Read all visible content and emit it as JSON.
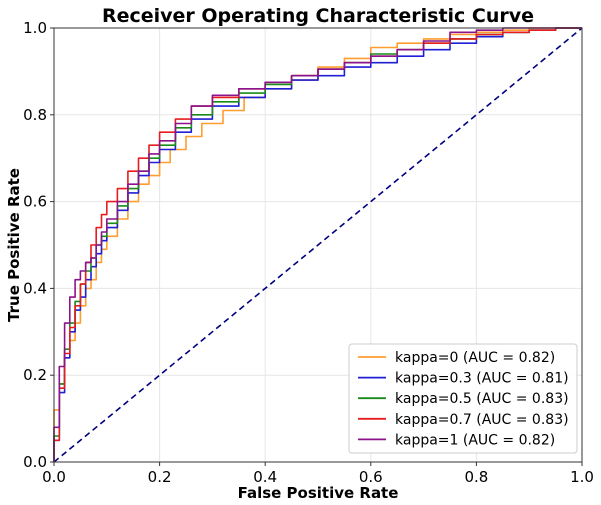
{
  "chart_data": {
    "type": "line",
    "title": "Receiver Operating Characteristic Curve",
    "xlabel": "False Positive Rate",
    "ylabel": "True Positive Rate",
    "xlim": [
      0.0,
      1.0
    ],
    "ylim": [
      0.0,
      1.0
    ],
    "x_ticks": [
      "0.0",
      "0.2",
      "0.4",
      "0.6",
      "0.8",
      "1.0"
    ],
    "y_ticks": [
      "0.0",
      "0.2",
      "0.4",
      "0.6",
      "0.8",
      "1.0"
    ],
    "grid": true,
    "legend_position": "lower-right",
    "diagonal": {
      "color": "#000080",
      "style": "dashed",
      "points": [
        [
          0,
          0
        ],
        [
          1,
          1
        ]
      ]
    },
    "series": [
      {
        "name": "kappa=0 (AUC = 0.82)",
        "color": "#ff9d2e",
        "points": [
          [
            0,
            0
          ],
          [
            0,
            0.12
          ],
          [
            0.01,
            0.12
          ],
          [
            0.01,
            0.18
          ],
          [
            0.02,
            0.24
          ],
          [
            0.03,
            0.28
          ],
          [
            0.04,
            0.32
          ],
          [
            0.05,
            0.36
          ],
          [
            0.06,
            0.4
          ],
          [
            0.07,
            0.42
          ],
          [
            0.08,
            0.46
          ],
          [
            0.09,
            0.49
          ],
          [
            0.1,
            0.52
          ],
          [
            0.12,
            0.56
          ],
          [
            0.14,
            0.6
          ],
          [
            0.16,
            0.64
          ],
          [
            0.18,
            0.66
          ],
          [
            0.2,
            0.69
          ],
          [
            0.22,
            0.72
          ],
          [
            0.25,
            0.75
          ],
          [
            0.28,
            0.78
          ],
          [
            0.32,
            0.81
          ],
          [
            0.36,
            0.84
          ],
          [
            0.4,
            0.86
          ],
          [
            0.45,
            0.88
          ],
          [
            0.5,
            0.91
          ],
          [
            0.55,
            0.93
          ],
          [
            0.6,
            0.955
          ],
          [
            0.65,
            0.965
          ],
          [
            0.7,
            0.975
          ],
          [
            0.75,
            0.985
          ],
          [
            0.8,
            0.99
          ],
          [
            0.85,
            0.995
          ],
          [
            0.9,
            1.0
          ],
          [
            1.0,
            1.0
          ]
        ]
      },
      {
        "name": "kappa=0.3 (AUC = 0.81)",
        "color": "#1f1fd6",
        "points": [
          [
            0,
            0
          ],
          [
            0,
            0.05
          ],
          [
            0.01,
            0.16
          ],
          [
            0.02,
            0.24
          ],
          [
            0.03,
            0.3
          ],
          [
            0.04,
            0.35
          ],
          [
            0.05,
            0.38
          ],
          [
            0.06,
            0.42
          ],
          [
            0.07,
            0.45
          ],
          [
            0.08,
            0.48
          ],
          [
            0.09,
            0.51
          ],
          [
            0.1,
            0.54
          ],
          [
            0.12,
            0.58
          ],
          [
            0.14,
            0.62
          ],
          [
            0.16,
            0.66
          ],
          [
            0.18,
            0.69
          ],
          [
            0.2,
            0.72
          ],
          [
            0.23,
            0.76
          ],
          [
            0.26,
            0.79
          ],
          [
            0.3,
            0.82
          ],
          [
            0.35,
            0.84
          ],
          [
            0.4,
            0.86
          ],
          [
            0.45,
            0.88
          ],
          [
            0.5,
            0.89
          ],
          [
            0.55,
            0.91
          ],
          [
            0.6,
            0.92
          ],
          [
            0.65,
            0.935
          ],
          [
            0.7,
            0.95
          ],
          [
            0.75,
            0.965
          ],
          [
            0.8,
            0.98
          ],
          [
            0.85,
            0.99
          ],
          [
            0.9,
            0.995
          ],
          [
            0.95,
            1.0
          ],
          [
            1.0,
            1.0
          ]
        ]
      },
      {
        "name": "kappa=0.5 (AUC = 0.83)",
        "color": "#1a8a1a",
        "points": [
          [
            0,
            0
          ],
          [
            0,
            0.06
          ],
          [
            0.01,
            0.18
          ],
          [
            0.02,
            0.26
          ],
          [
            0.03,
            0.32
          ],
          [
            0.04,
            0.37
          ],
          [
            0.05,
            0.41
          ],
          [
            0.06,
            0.44
          ],
          [
            0.07,
            0.47
          ],
          [
            0.08,
            0.5
          ],
          [
            0.09,
            0.52
          ],
          [
            0.1,
            0.55
          ],
          [
            0.12,
            0.59
          ],
          [
            0.14,
            0.63
          ],
          [
            0.16,
            0.67
          ],
          [
            0.18,
            0.7
          ],
          [
            0.2,
            0.73
          ],
          [
            0.23,
            0.77
          ],
          [
            0.26,
            0.8
          ],
          [
            0.3,
            0.83
          ],
          [
            0.35,
            0.85
          ],
          [
            0.4,
            0.87
          ],
          [
            0.45,
            0.89
          ],
          [
            0.5,
            0.905
          ],
          [
            0.55,
            0.92
          ],
          [
            0.6,
            0.94
          ],
          [
            0.65,
            0.95
          ],
          [
            0.7,
            0.965
          ],
          [
            0.75,
            0.975
          ],
          [
            0.8,
            0.985
          ],
          [
            0.85,
            0.99
          ],
          [
            0.9,
            0.995
          ],
          [
            0.95,
            1.0
          ],
          [
            1.0,
            1.0
          ]
        ]
      },
      {
        "name": "kappa=0.7 (AUC = 0.83)",
        "color": "#e81c1c",
        "points": [
          [
            0,
            0
          ],
          [
            0,
            0.05
          ],
          [
            0.01,
            0.17
          ],
          [
            0.02,
            0.25
          ],
          [
            0.03,
            0.31
          ],
          [
            0.04,
            0.36
          ],
          [
            0.05,
            0.41
          ],
          [
            0.06,
            0.46
          ],
          [
            0.07,
            0.5
          ],
          [
            0.08,
            0.54
          ],
          [
            0.09,
            0.57
          ],
          [
            0.1,
            0.6
          ],
          [
            0.12,
            0.63
          ],
          [
            0.14,
            0.67
          ],
          [
            0.16,
            0.7
          ],
          [
            0.18,
            0.73
          ],
          [
            0.2,
            0.76
          ],
          [
            0.23,
            0.79
          ],
          [
            0.26,
            0.82
          ],
          [
            0.3,
            0.84
          ],
          [
            0.35,
            0.86
          ],
          [
            0.4,
            0.875
          ],
          [
            0.45,
            0.89
          ],
          [
            0.5,
            0.905
          ],
          [
            0.55,
            0.92
          ],
          [
            0.6,
            0.935
          ],
          [
            0.65,
            0.95
          ],
          [
            0.7,
            0.965
          ],
          [
            0.75,
            0.975
          ],
          [
            0.8,
            0.985
          ],
          [
            0.85,
            0.99
          ],
          [
            0.9,
            0.995
          ],
          [
            0.95,
            1.0
          ],
          [
            1.0,
            1.0
          ]
        ]
      },
      {
        "name": "kappa=1 (AUC = 0.82)",
        "color": "#8b138b",
        "points": [
          [
            0,
            0
          ],
          [
            0,
            0.08
          ],
          [
            0.01,
            0.22
          ],
          [
            0.02,
            0.32
          ],
          [
            0.03,
            0.38
          ],
          [
            0.04,
            0.42
          ],
          [
            0.05,
            0.44
          ],
          [
            0.06,
            0.46
          ],
          [
            0.07,
            0.47
          ],
          [
            0.08,
            0.5
          ],
          [
            0.09,
            0.53
          ],
          [
            0.1,
            0.56
          ],
          [
            0.12,
            0.6
          ],
          [
            0.14,
            0.64
          ],
          [
            0.16,
            0.67
          ],
          [
            0.18,
            0.71
          ],
          [
            0.2,
            0.74
          ],
          [
            0.23,
            0.78
          ],
          [
            0.26,
            0.82
          ],
          [
            0.3,
            0.845
          ],
          [
            0.35,
            0.86
          ],
          [
            0.4,
            0.875
          ],
          [
            0.45,
            0.89
          ],
          [
            0.5,
            0.905
          ],
          [
            0.55,
            0.92
          ],
          [
            0.6,
            0.935
          ],
          [
            0.65,
            0.95
          ],
          [
            0.7,
            0.97
          ],
          [
            0.75,
            0.99
          ],
          [
            0.8,
            0.995
          ],
          [
            0.85,
            1.0
          ],
          [
            1.0,
            1.0
          ]
        ]
      }
    ]
  }
}
